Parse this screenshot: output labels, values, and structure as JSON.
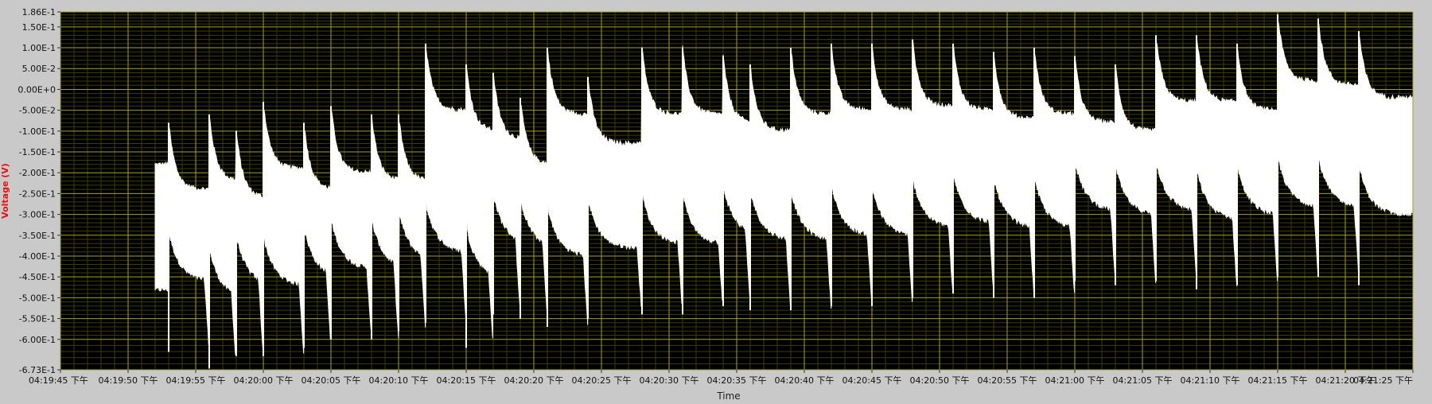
{
  "chart_data": {
    "type": "line",
    "title": "",
    "xlabel": "Time",
    "ylabel": "Voltage (V)",
    "x_range": [
      "04:19:45 下午",
      "04:21:25 下午"
    ],
    "ylim": [
      -0.673,
      0.186
    ],
    "y_ticks": [
      "1.86E-1",
      "1.50E-1",
      "1.00E-1",
      "5.00E-2",
      "0.00E+0",
      "-5.00E-2",
      "-1.00E-1",
      "-1.50E-1",
      "-2.00E-1",
      "-2.50E-1",
      "-3.00E-1",
      "-3.50E-1",
      "-4.00E-1",
      "-4.50E-1",
      "-5.00E-1",
      "-5.50E-1",
      "-6.00E-1",
      "-6.73E-1"
    ],
    "y_tick_values": [
      0.186,
      0.15,
      0.1,
      0.05,
      0.0,
      -0.05,
      -0.1,
      -0.15,
      -0.2,
      -0.25,
      -0.3,
      -0.35,
      -0.4,
      -0.45,
      -0.5,
      -0.55,
      -0.6,
      -0.673
    ],
    "x_ticks": [
      "04:19:45 下午",
      "04:19:50 下午",
      "04:19:55 下午",
      "04:20:00 下午",
      "04:20:05 下午",
      "04:20:10 下午",
      "04:20:15 下午",
      "04:20:20 下午",
      "04:20:25 下午",
      "04:20:30 下午",
      "04:20:35 下午",
      "04:20:40 下午",
      "04:20:45 下午",
      "04:20:50 下午",
      "04:20:55 下午",
      "04:21:00 下午",
      "04:21:05 下午",
      "04:21:10 下午",
      "04:21:15 下午",
      "04:21:20 下午",
      "04:21:25 下午"
    ],
    "x_tick_seconds": [
      0,
      5,
      10,
      15,
      20,
      25,
      30,
      35,
      40,
      45,
      50,
      55,
      60,
      65,
      70,
      75,
      80,
      85,
      90,
      95,
      100
    ],
    "grid": true,
    "colors": {
      "background": "#c9c9c9",
      "plot_bg": "#000000",
      "grid_major": "#a3a317",
      "grid_minor": "#3c3c00",
      "trace": "#ffffff",
      "ylabel_color": "#e81111"
    },
    "signal": {
      "start": "04:19:52 下午",
      "end": "04:21:25 下午",
      "pulses": [
        {
          "t": "04:19:53",
          "peak": -0.08,
          "low": -0.63
        },
        {
          "t": "04:19:56",
          "peak": -0.06,
          "low": -0.67
        },
        {
          "t": "04:19:58",
          "peak": -0.1,
          "low": -0.64
        },
        {
          "t": "04:20:00",
          "peak": -0.03,
          "low": -0.64
        },
        {
          "t": "04:20:03",
          "peak": -0.08,
          "low": -0.62
        },
        {
          "t": "04:20:05",
          "peak": -0.04,
          "low": -0.6
        },
        {
          "t": "04:20:08",
          "peak": -0.06,
          "low": -0.6
        },
        {
          "t": "04:20:10",
          "peak": -0.06,
          "low": -0.58
        },
        {
          "t": "04:20:12",
          "peak": 0.11,
          "low": -0.56
        },
        {
          "t": "04:20:15",
          "peak": 0.06,
          "low": -0.62
        },
        {
          "t": "04:20:17",
          "peak": 0.04,
          "low": -0.54
        },
        {
          "t": "04:20:19",
          "peak": -0.02,
          "low": -0.55
        },
        {
          "t": "04:20:21",
          "peak": 0.1,
          "low": -0.57
        },
        {
          "t": "04:20:24",
          "peak": 0.03,
          "low": -0.55
        },
        {
          "t": "04:20:28",
          "peak": 0.1,
          "low": -0.54
        },
        {
          "t": "04:20:31",
          "peak": 0.1,
          "low": -0.54
        },
        {
          "t": "04:20:34",
          "peak": 0.08,
          "low": -0.52
        },
        {
          "t": "04:20:36",
          "peak": 0.06,
          "low": -0.53
        },
        {
          "t": "04:20:39",
          "peak": 0.1,
          "low": -0.53
        },
        {
          "t": "04:20:42",
          "peak": 0.11,
          "low": -0.52
        },
        {
          "t": "04:20:45",
          "peak": 0.11,
          "low": -0.52
        },
        {
          "t": "04:20:48",
          "peak": 0.12,
          "low": -0.5
        },
        {
          "t": "04:20:51",
          "peak": 0.11,
          "low": -0.49
        },
        {
          "t": "04:20:54",
          "peak": 0.09,
          "low": -0.5
        },
        {
          "t": "04:20:57",
          "peak": 0.1,
          "low": -0.5
        },
        {
          "t": "04:21:00",
          "peak": 0.08,
          "low": -0.46
        },
        {
          "t": "04:21:03",
          "peak": 0.06,
          "low": -0.47
        },
        {
          "t": "04:21:06",
          "peak": 0.13,
          "low": -0.46
        },
        {
          "t": "04:21:09",
          "peak": 0.13,
          "low": -0.48
        },
        {
          "t": "04:21:12",
          "peak": 0.11,
          "low": -0.47
        },
        {
          "t": "04:21:15",
          "peak": 0.18,
          "low": -0.45
        },
        {
          "t": "04:21:18",
          "peak": 0.17,
          "low": -0.45
        },
        {
          "t": "04:21:21",
          "peak": 0.14,
          "low": -0.47
        }
      ]
    }
  }
}
